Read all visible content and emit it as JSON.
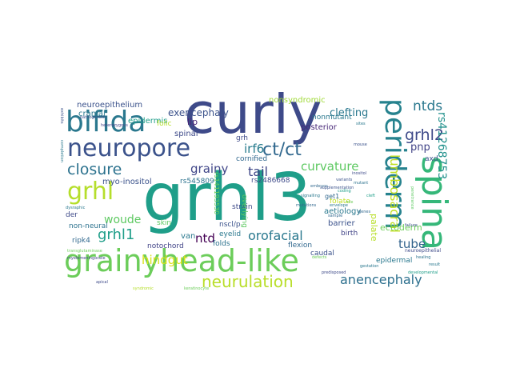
{
  "words": [
    {
      "text": "curly",
      "color": "#3e4a89"
    },
    {
      "text": "grhl3",
      "color": "#1f9e89"
    },
    {
      "text": "grainyhead-like",
      "color": "#6ccd5a"
    },
    {
      "text": "bifida",
      "color": "#2a788e"
    },
    {
      "text": "neuropore",
      "color": "#3b528b"
    },
    {
      "text": "spina",
      "color": "#35b779"
    },
    {
      "text": "periderm",
      "color": "#26828e"
    },
    {
      "text": "grhl",
      "color": "#b5de2b"
    },
    {
      "text": "ct/ct",
      "color": "#31688e"
    },
    {
      "text": "closure",
      "color": "#2c728e"
    },
    {
      "text": "neurulation",
      "color": "#b8de29"
    },
    {
      "text": "grhl2",
      "color": "#3e4a89"
    },
    {
      "text": "ntds",
      "color": "#2a788e"
    },
    {
      "text": "rs41268753",
      "color": "#21918c"
    },
    {
      "text": "lumbosacral",
      "color": "#c2df23"
    },
    {
      "text": "grhl1",
      "color": "#1f9e89"
    },
    {
      "text": "anencephaly",
      "color": "#2d708e"
    },
    {
      "text": "orofacial",
      "color": "#2a788e"
    },
    {
      "text": "tail",
      "color": "#3f4788"
    },
    {
      "text": "curvature",
      "color": "#5ec962"
    },
    {
      "text": "grainy",
      "color": "#404688"
    },
    {
      "text": "irf6",
      "color": "#287c8e"
    },
    {
      "text": "ntd",
      "color": "#440154"
    },
    {
      "text": "hindgut",
      "color": "#d8e219"
    },
    {
      "text": "woude",
      "color": "#5ec962"
    },
    {
      "text": "tube",
      "color": "#33638d"
    },
    {
      "text": "exencephaly",
      "color": "#3b528b"
    },
    {
      "text": "clefting",
      "color": "#2a788e"
    },
    {
      "text": "pnp",
      "color": "#414487"
    },
    {
      "text": "palate",
      "color": "#b8de29"
    },
    {
      "text": "ectoderm",
      "color": "#6ccd5a"
    },
    {
      "text": "neuroepithelium",
      "color": "#3b528b"
    },
    {
      "text": "nonsyndromic",
      "color": "#a0da39"
    },
    {
      "text": "lip",
      "color": "#482576"
    },
    {
      "text": "spinal",
      "color": "#3e4a89"
    },
    {
      "text": "cranial",
      "color": "#2a788e"
    },
    {
      "text": "epidermis",
      "color": "#1f9e89"
    },
    {
      "text": "posterior",
      "color": "#482878"
    },
    {
      "text": "nonmutant",
      "color": "#2a788e"
    },
    {
      "text": "grh",
      "color": "#3e4a89"
    },
    {
      "text": "cornified",
      "color": "#31688e"
    },
    {
      "text": "myo-inositol",
      "color": "#3b528b"
    },
    {
      "text": "rs545809",
      "color": "#2c728e"
    },
    {
      "text": "rs2486668",
      "color": "#3e4a89"
    },
    {
      "text": "folate",
      "color": "#c2df23"
    },
    {
      "text": "aetiology",
      "color": "#2a788e"
    },
    {
      "text": "barrier",
      "color": "#3b528b"
    },
    {
      "text": "van",
      "color": "#2a788e"
    },
    {
      "text": "notochord",
      "color": "#414487"
    },
    {
      "text": "ripk4",
      "color": "#31688e"
    },
    {
      "text": "non-neural",
      "color": "#2c728e"
    },
    {
      "text": "der",
      "color": "#3e4a89"
    },
    {
      "text": "skin",
      "color": "#5ec962"
    },
    {
      "text": "folic",
      "color": "#b5de2b"
    },
    {
      "text": "nscl/p",
      "color": "#3b528b"
    },
    {
      "text": "eyelid",
      "color": "#2a788e"
    },
    {
      "text": "strain",
      "color": "#3e4a89"
    },
    {
      "text": "folds",
      "color": "#2c728e"
    },
    {
      "text": "flexion",
      "color": "#31688e"
    },
    {
      "text": "caudal",
      "color": "#3b528b"
    },
    {
      "text": "birth",
      "color": "#414487"
    },
    {
      "text": "get1",
      "color": "#31688e"
    },
    {
      "text": "overlying",
      "color": "#5ec962"
    },
    {
      "text": "rs141193530",
      "color": "#6ccd5a"
    },
    {
      "text": "axd",
      "color": "#3b528b"
    },
    {
      "text": "epidermal",
      "color": "#2a788e"
    },
    {
      "text": "neuroepithelial",
      "color": "#3e4a89"
    },
    {
      "text": "pathogenetic",
      "color": "#3b528b"
    },
    {
      "text": "sites",
      "color": "#2a788e"
    },
    {
      "text": "embryos",
      "color": "#31688e"
    },
    {
      "text": "heterozygous",
      "color": "#414487"
    },
    {
      "text": "defects",
      "color": "#6ccd5a"
    },
    {
      "text": "failure",
      "color": "#3b528b"
    },
    {
      "text": "healing",
      "color": "#2c728e"
    },
    {
      "text": "developmental",
      "color": "#1f9e89"
    },
    {
      "text": "gestation",
      "color": "#2a788e"
    },
    {
      "text": "predisposed",
      "color": "#3e4a89"
    },
    {
      "text": "keratinocyte",
      "color": "#6ccd5a"
    },
    {
      "text": "syndromic",
      "color": "#b5de2b"
    },
    {
      "text": "supplementation",
      "color": "#3b528b"
    },
    {
      "text": "apical",
      "color": "#3e4a89"
    },
    {
      "text": "envelope",
      "color": "#2a788e"
    },
    {
      "text": "sample",
      "color": "#31688e"
    },
    {
      "text": "coding",
      "color": "#1f9e89"
    },
    {
      "text": "variants",
      "color": "#3b528b"
    },
    {
      "text": "dysraphic",
      "color": "#2a788e"
    },
    {
      "text": "transglutaminase",
      "color": "#6ccd5a"
    },
    {
      "text": "myelomeningocele",
      "color": "#414487"
    },
    {
      "text": "exhibits",
      "color": "#3b528b"
    },
    {
      "text": "completion",
      "color": "#2a788e"
    },
    {
      "text": "genes",
      "color": "#31688e"
    },
    {
      "text": "mutant",
      "color": "#2c728e"
    },
    {
      "text": "penetrance",
      "color": "#5ec962"
    },
    {
      "text": "inositol",
      "color": "#3e4a89"
    },
    {
      "text": "result",
      "color": "#2a788e"
    },
    {
      "text": "mouse",
      "color": "#3b528b"
    },
    {
      "text": "cleft",
      "color": "#1f9e89"
    },
    {
      "text": "role",
      "color": "#6ccd5a"
    },
    {
      "text": "signalling",
      "color": "#2a788e"
    },
    {
      "text": "mutations",
      "color": "#31688e"
    }
  ]
}
